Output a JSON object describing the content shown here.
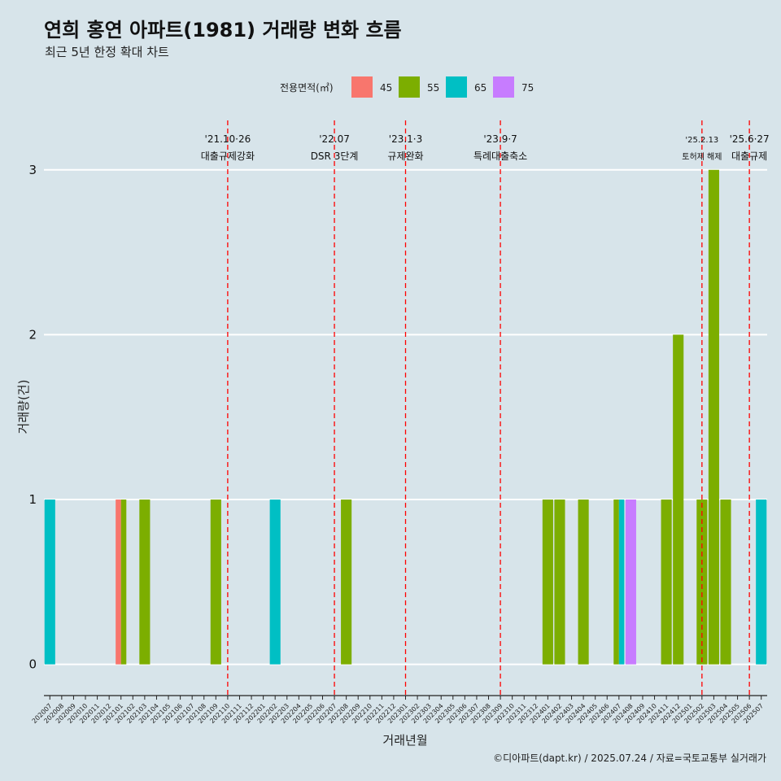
{
  "chart_data": {
    "type": "bar",
    "title": "연희 홍연 아파트(1981) 거래량 변화 흐름",
    "subtitle": "최근 5년 한정 확대 차트",
    "xlabel": "거래년월",
    "ylabel": "거래량(건)",
    "ylim": [
      -0.14,
      3.3
    ],
    "yticks": [
      0,
      1,
      2,
      3
    ],
    "legend_title": "전용면적(㎡)",
    "legend_position": "top",
    "categories": [
      "202007",
      "202008",
      "202009",
      "202010",
      "202011",
      "202012",
      "202101",
      "202102",
      "202103",
      "202104",
      "202105",
      "202106",
      "202107",
      "202108",
      "202109",
      "202110",
      "202111",
      "202112",
      "202201",
      "202202",
      "202203",
      "202204",
      "202205",
      "202206",
      "202207",
      "202208",
      "202209",
      "202210",
      "202211",
      "202212",
      "202301",
      "202302",
      "202303",
      "202304",
      "202305",
      "202306",
      "202307",
      "202308",
      "202309",
      "202310",
      "202311",
      "202312",
      "202401",
      "202402",
      "202403",
      "202404",
      "202405",
      "202406",
      "202407",
      "202408",
      "202409",
      "202410",
      "202411",
      "202412",
      "202501",
      "202502",
      "202503",
      "202504",
      "202505",
      "202506",
      "202507"
    ],
    "series": [
      {
        "name": "45",
        "color": "#F8766D",
        "points": [
          {
            "x": "202101",
            "y": 1
          }
        ]
      },
      {
        "name": "55",
        "color": "#7CAE00",
        "points": [
          {
            "x": "202101",
            "y": 1
          },
          {
            "x": "202103",
            "y": 1
          },
          {
            "x": "202109",
            "y": 1
          },
          {
            "x": "202208",
            "y": 1
          },
          {
            "x": "202401",
            "y": 1
          },
          {
            "x": "202402",
            "y": 1
          },
          {
            "x": "202404",
            "y": 1
          },
          {
            "x": "202407",
            "y": 1
          },
          {
            "x": "202411",
            "y": 1
          },
          {
            "x": "202412",
            "y": 2
          },
          {
            "x": "202502",
            "y": 1
          },
          {
            "x": "202503",
            "y": 3
          },
          {
            "x": "202504",
            "y": 1
          }
        ]
      },
      {
        "name": "65",
        "color": "#00BFC4",
        "points": [
          {
            "x": "202007",
            "y": 1
          },
          {
            "x": "202202",
            "y": 1
          },
          {
            "x": "202407",
            "y": 1
          },
          {
            "x": "202507",
            "y": 1
          }
        ]
      },
      {
        "name": "75",
        "color": "#C77CFF",
        "points": [
          {
            "x": "202408",
            "y": 1
          }
        ]
      }
    ],
    "annotations": [
      {
        "x": "202110",
        "date": "'21.10·26",
        "label": "대출규제강화",
        "size": "normal"
      },
      {
        "x": "202207",
        "date": "'22.07",
        "label": "DSR 3단계",
        "size": "normal"
      },
      {
        "x": "202301",
        "date": "'23.1·3",
        "label": "규제완화",
        "size": "normal"
      },
      {
        "x": "202309",
        "date": "'23.9·7",
        "label": "특례대출축소",
        "size": "normal"
      },
      {
        "x": "202502",
        "date": "'25.2.13",
        "label": "토허제 해제",
        "size": "small"
      },
      {
        "x": "202506",
        "date": "'25.6·27",
        "label": "대출규제",
        "size": "normal"
      }
    ],
    "caption": "©디아파트(dapt.kr) / 2025.07.24 / 자료=국토교통부 실거래가"
  }
}
